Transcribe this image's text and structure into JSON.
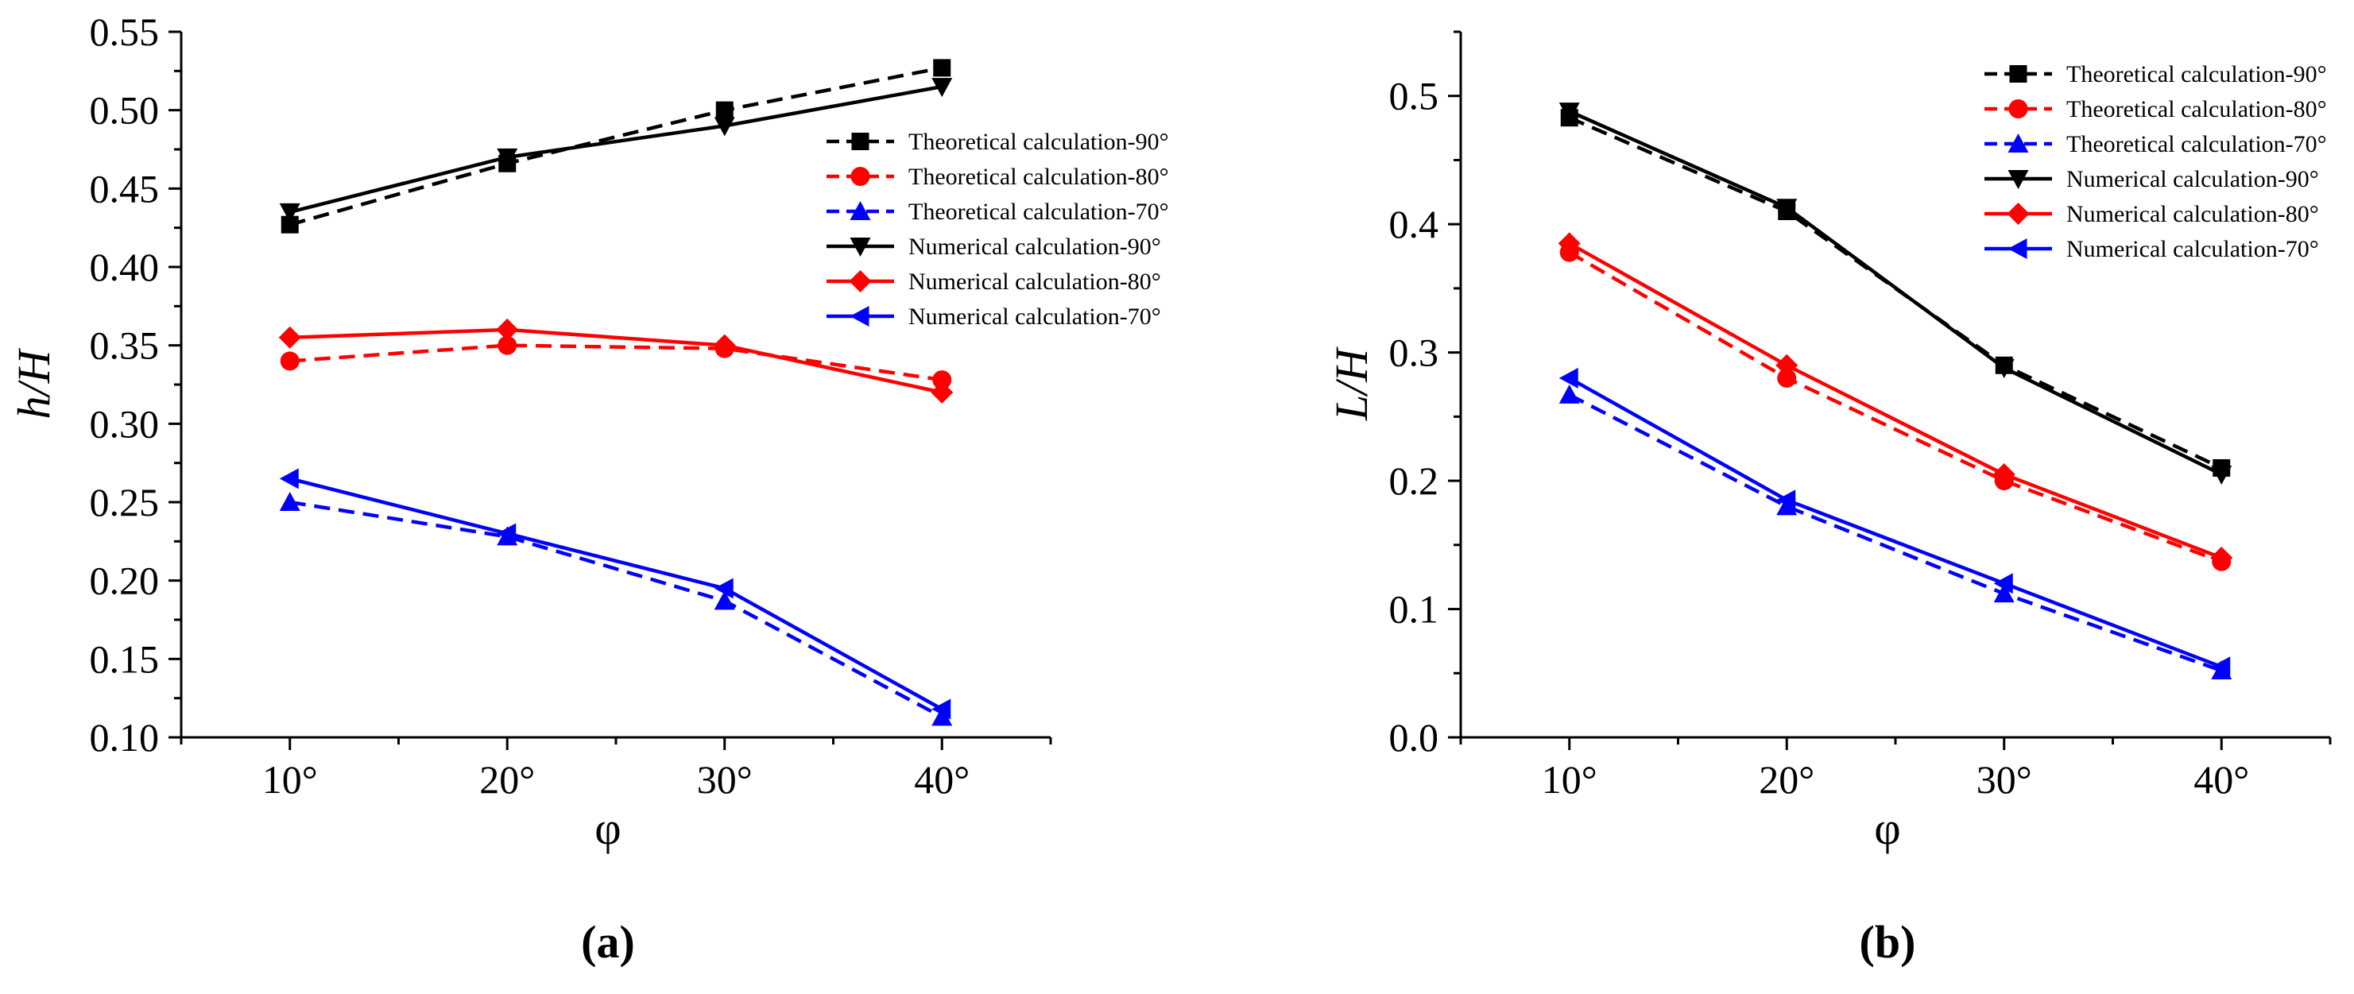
{
  "chart_data": [
    {
      "panel": "a",
      "panel_label": "(a)",
      "type": "line",
      "xlabel": "φ",
      "ylabel_italic": "h",
      "ylabel_rest": "/H",
      "categories": [
        "10°",
        "20°",
        "30°",
        "40°"
      ],
      "x": [
        10,
        20,
        30,
        40
      ],
      "xlim": [
        5,
        45
      ],
      "ylim": [
        0.1,
        0.55
      ],
      "yticks": [
        0.1,
        0.15,
        0.2,
        0.25,
        0.3,
        0.35,
        0.4,
        0.45,
        0.5,
        0.55
      ],
      "ytick_labels": [
        "0.10",
        "0.15",
        "0.20",
        "0.25",
        "0.30",
        "0.35",
        "0.40",
        "0.45",
        "0.50",
        "0.55"
      ],
      "legend_position": "right-middle",
      "series": [
        {
          "name": "Theoretical calculation-90°",
          "color": "#000000",
          "dash": true,
          "marker": "square",
          "values": [
            0.427,
            0.466,
            0.5,
            0.527
          ]
        },
        {
          "name": "Theoretical calculation-80°",
          "color": "#ff0000",
          "dash": true,
          "marker": "circle",
          "values": [
            0.34,
            0.35,
            0.348,
            0.328
          ]
        },
        {
          "name": "Theoretical calculation-70°",
          "color": "#0000ff",
          "dash": true,
          "marker": "triangle-up",
          "values": [
            0.25,
            0.228,
            0.187,
            0.113
          ]
        },
        {
          "name": "Numerical calculation-90°",
          "color": "#000000",
          "dash": false,
          "marker": "triangle-down",
          "values": [
            0.435,
            0.47,
            0.49,
            0.515
          ]
        },
        {
          "name": "Numerical calculation-80°",
          "color": "#ff0000",
          "dash": false,
          "marker": "diamond",
          "values": [
            0.355,
            0.36,
            0.35,
            0.32
          ]
        },
        {
          "name": "Numerical calculation-70°",
          "color": "#0000ff",
          "dash": false,
          "marker": "triangle-left",
          "values": [
            0.265,
            0.23,
            0.195,
            0.118
          ]
        }
      ]
    },
    {
      "panel": "b",
      "panel_label": "(b)",
      "type": "line",
      "xlabel": "φ",
      "ylabel_italic": "L",
      "ylabel_rest": "/H",
      "categories": [
        "10°",
        "20°",
        "30°",
        "40°"
      ],
      "x": [
        10,
        20,
        30,
        40
      ],
      "xlim": [
        5,
        45
      ],
      "ylim": [
        0.0,
        0.55
      ],
      "yticks": [
        0.0,
        0.1,
        0.2,
        0.3,
        0.4,
        0.5
      ],
      "ytick_labels": [
        "0.0",
        "0.1",
        "0.2",
        "0.3",
        "0.4",
        "0.5"
      ],
      "legend_position": "top-right",
      "series": [
        {
          "name": "Theoretical calculation-90°",
          "color": "#000000",
          "dash": true,
          "marker": "square",
          "values": [
            0.483,
            0.41,
            0.29,
            0.21
          ]
        },
        {
          "name": "Theoretical calculation-80°",
          "color": "#ff0000",
          "dash": true,
          "marker": "circle",
          "values": [
            0.378,
            0.28,
            0.2,
            0.137
          ]
        },
        {
          "name": "Theoretical calculation-70°",
          "color": "#0000ff",
          "dash": true,
          "marker": "triangle-up",
          "values": [
            0.267,
            0.18,
            0.112,
            0.052
          ]
        },
        {
          "name": "Numerical calculation-90°",
          "color": "#000000",
          "dash": false,
          "marker": "triangle-down",
          "values": [
            0.488,
            0.413,
            0.288,
            0.205
          ]
        },
        {
          "name": "Numerical calculation-80°",
          "color": "#ff0000",
          "dash": false,
          "marker": "diamond",
          "values": [
            0.385,
            0.29,
            0.205,
            0.14
          ]
        },
        {
          "name": "Numerical calculation-70°",
          "color": "#0000ff",
          "dash": false,
          "marker": "triangle-left",
          "values": [
            0.28,
            0.185,
            0.12,
            0.055
          ]
        }
      ]
    }
  ]
}
